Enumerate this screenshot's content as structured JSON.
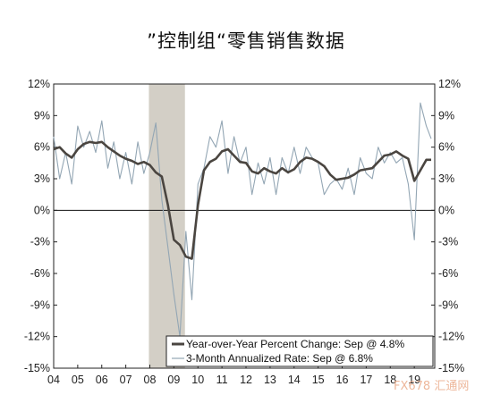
{
  "title": "”控制组“零售销售数据",
  "chart_data": {
    "type": "line",
    "title": "”控制组“零售销售数据",
    "xlabel": "",
    "ylabel": "",
    "ylim": [
      -15,
      12
    ],
    "y_ticks": [
      12,
      9,
      6,
      3,
      0,
      -3,
      -6,
      -9,
      -12,
      -15
    ],
    "y_tick_labels": [
      "12%",
      "9%",
      "6%",
      "3%",
      "0%",
      "-3%",
      "-6%",
      "-9%",
      "-12%",
      "-15%"
    ],
    "x_tick_labels": [
      "04",
      "05",
      "06",
      "07",
      "08",
      "09",
      "10",
      "11",
      "12",
      "13",
      "14",
      "15",
      "16",
      "17",
      "18",
      "19"
    ],
    "xlim": [
      2004,
      2019.85
    ],
    "recession_shading": [
      2007.96,
      2009.46
    ],
    "grid": false,
    "legend_position": "bottom-right",
    "series": [
      {
        "name": "Year-over-Year Percent Change: Sep @ 4.8%",
        "color": "#4a4540",
        "x": [
          2004.0,
          2004.25,
          2004.5,
          2004.75,
          2005.0,
          2005.25,
          2005.5,
          2005.75,
          2006.0,
          2006.25,
          2006.5,
          2006.75,
          2007.0,
          2007.25,
          2007.5,
          2007.75,
          2008.0,
          2008.25,
          2008.5,
          2008.75,
          2009.0,
          2009.25,
          2009.5,
          2009.75,
          2010.0,
          2010.25,
          2010.5,
          2010.75,
          2011.0,
          2011.25,
          2011.5,
          2011.75,
          2012.0,
          2012.25,
          2012.5,
          2012.75,
          2013.0,
          2013.25,
          2013.5,
          2013.75,
          2014.0,
          2014.25,
          2014.5,
          2014.75,
          2015.0,
          2015.25,
          2015.5,
          2015.75,
          2016.0,
          2016.25,
          2016.5,
          2016.75,
          2017.0,
          2017.25,
          2017.5,
          2017.75,
          2018.0,
          2018.25,
          2018.5,
          2018.75,
          2019.0,
          2019.25,
          2019.5,
          2019.7
        ],
        "values": [
          5.8,
          6.0,
          5.4,
          5.0,
          5.8,
          6.3,
          6.5,
          6.4,
          6.5,
          6.0,
          5.6,
          5.2,
          4.9,
          4.7,
          4.4,
          4.6,
          4.3,
          3.6,
          3.2,
          0.5,
          -2.8,
          -3.3,
          -4.4,
          -4.6,
          0.5,
          3.8,
          4.6,
          4.9,
          5.6,
          5.8,
          5.2,
          4.6,
          4.5,
          3.7,
          3.5,
          4.0,
          3.7,
          3.5,
          4.0,
          3.6,
          3.9,
          4.6,
          5.0,
          4.9,
          4.6,
          4.2,
          3.4,
          2.9,
          3.0,
          3.1,
          3.4,
          3.8,
          3.9,
          4.0,
          4.6,
          5.2,
          5.3,
          5.6,
          5.2,
          4.9,
          2.8,
          3.8,
          4.8,
          4.8
        ]
      },
      {
        "name": "3-Month Annualized Rate: Sep @ 6.8%",
        "color": "#93a6b4",
        "x": [
          2004.0,
          2004.25,
          2004.5,
          2004.75,
          2005.0,
          2005.25,
          2005.5,
          2005.75,
          2006.0,
          2006.25,
          2006.5,
          2006.75,
          2007.0,
          2007.25,
          2007.5,
          2007.75,
          2008.0,
          2008.25,
          2008.5,
          2008.75,
          2009.0,
          2009.25,
          2009.5,
          2009.75,
          2010.0,
          2010.25,
          2010.5,
          2010.75,
          2011.0,
          2011.25,
          2011.5,
          2011.75,
          2012.0,
          2012.25,
          2012.5,
          2012.75,
          2013.0,
          2013.25,
          2013.5,
          2013.75,
          2014.0,
          2014.25,
          2014.5,
          2014.75,
          2015.0,
          2015.25,
          2015.5,
          2015.75,
          2016.0,
          2016.25,
          2016.5,
          2016.75,
          2017.0,
          2017.25,
          2017.5,
          2017.75,
          2018.0,
          2018.25,
          2018.5,
          2018.75,
          2019.0,
          2019.25,
          2019.5,
          2019.7
        ],
        "values": [
          7.0,
          3.0,
          5.5,
          2.5,
          8.0,
          6.0,
          7.5,
          5.5,
          8.5,
          4.0,
          6.5,
          3.0,
          5.5,
          2.5,
          6.5,
          3.5,
          5.5,
          8.3,
          1.0,
          -3.5,
          -8.0,
          -12.0,
          -2.0,
          -8.5,
          2.5,
          4.0,
          7.0,
          6.0,
          8.5,
          3.5,
          7.0,
          4.5,
          6.0,
          1.5,
          4.5,
          2.5,
          5.0,
          1.5,
          5.0,
          3.5,
          6.0,
          3.5,
          6.0,
          5.0,
          4.5,
          1.5,
          2.5,
          3.0,
          2.0,
          4.0,
          1.5,
          5.0,
          3.5,
          3.0,
          6.0,
          4.5,
          5.5,
          4.5,
          5.0,
          2.5,
          -2.8,
          10.2,
          8.0,
          6.8
        ]
      }
    ],
    "watermark": "FX678 汇通网"
  }
}
